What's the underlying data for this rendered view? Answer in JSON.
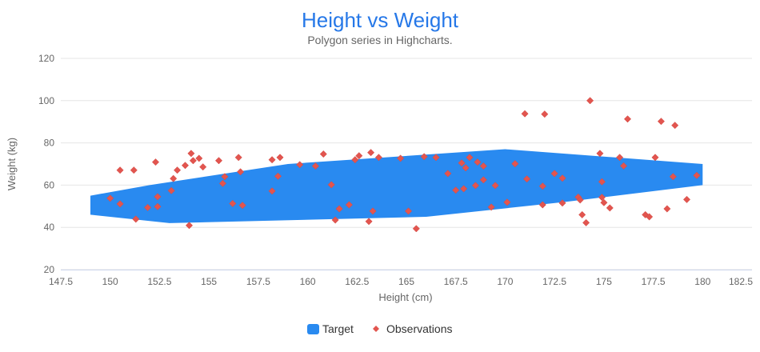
{
  "title": {
    "text": "Height vs Weight",
    "color": "#2678e8"
  },
  "subtitle": {
    "text": "Polygon series in Highcharts.",
    "color": "#666666"
  },
  "x_axis": {
    "title": "Height (cm)",
    "min": 147.5,
    "max": 182.5,
    "tick_interval": 2.5
  },
  "y_axis": {
    "title": "Weight (kg)",
    "min": 20,
    "max": 120,
    "tick_interval": 20
  },
  "legend": {
    "position": "bottom-center",
    "items": [
      {
        "label": "Target",
        "marker": "square",
        "color": "#298af0"
      },
      {
        "label": "Observations",
        "marker": "diamond",
        "color": "#e2554f"
      }
    ]
  },
  "chart_data": {
    "type": "scatter",
    "title": "Height vs Weight",
    "subtitle": "Polygon series in Highcharts.",
    "xlabel": "Height (cm)",
    "ylabel": "Weight (kg)",
    "xlim": [
      147.5,
      182.5
    ],
    "ylim": [
      20,
      120
    ],
    "x_ticks": [
      147.5,
      150,
      152.5,
      155,
      157.5,
      160,
      162.5,
      165,
      167.5,
      170,
      172.5,
      175,
      177.5,
      180,
      182.5
    ],
    "y_ticks": [
      20,
      40,
      60,
      80,
      100,
      120
    ],
    "grid": "horizontal-only",
    "legend_position": "bottom-center",
    "series": [
      {
        "name": "Target",
        "type": "polygon",
        "color": "#298af0",
        "points": [
          [
            153,
            42
          ],
          [
            149,
            46
          ],
          [
            149,
            55
          ],
          [
            152,
            60
          ],
          [
            159,
            70
          ],
          [
            170,
            77
          ],
          [
            180,
            70
          ],
          [
            180,
            60
          ],
          [
            173,
            52
          ],
          [
            166,
            45
          ]
        ]
      },
      {
        "name": "Observations",
        "type": "scatter",
        "marker": "diamond",
        "color": "#e2554f",
        "points": [
          [
            150.0,
            53.8
          ],
          [
            150.5,
            51.1
          ],
          [
            150.5,
            67.1
          ],
          [
            151.2,
            67.1
          ],
          [
            151.3,
            43.9
          ],
          [
            151.9,
            49.4
          ],
          [
            152.3,
            70.9
          ],
          [
            152.4,
            49.8
          ],
          [
            152.4,
            54.5
          ],
          [
            153.1,
            57.4
          ],
          [
            153.2,
            63.1
          ],
          [
            153.4,
            67.1
          ],
          [
            153.8,
            69.3
          ],
          [
            154.0,
            40.9
          ],
          [
            154.1,
            75.0
          ],
          [
            154.2,
            71.6
          ],
          [
            154.5,
            72.7
          ],
          [
            154.7,
            68.6
          ],
          [
            155.5,
            71.6
          ],
          [
            155.7,
            60.8
          ],
          [
            155.8,
            64.0
          ],
          [
            156.2,
            51.3
          ],
          [
            156.5,
            73.1
          ],
          [
            156.6,
            66.3
          ],
          [
            156.7,
            50.4
          ],
          [
            158.2,
            72.0
          ],
          [
            158.2,
            57.2
          ],
          [
            158.5,
            64.2
          ],
          [
            158.6,
            73.1
          ],
          [
            159.6,
            69.7
          ],
          [
            160.4,
            69.0
          ],
          [
            160.8,
            74.7
          ],
          [
            161.2,
            60.2
          ],
          [
            161.4,
            43.5
          ],
          [
            161.6,
            48.8
          ],
          [
            162.1,
            50.7
          ],
          [
            162.4,
            72.0
          ],
          [
            162.6,
            73.9
          ],
          [
            163.1,
            42.8
          ],
          [
            163.2,
            75.4
          ],
          [
            163.3,
            47.7
          ],
          [
            163.6,
            73.1
          ],
          [
            164.7,
            72.7
          ],
          [
            165.1,
            47.7
          ],
          [
            165.5,
            39.4
          ],
          [
            165.9,
            73.5
          ],
          [
            166.5,
            73.1
          ],
          [
            167.1,
            65.5
          ],
          [
            167.5,
            57.6
          ],
          [
            167.8,
            70.5
          ],
          [
            167.9,
            58.3
          ],
          [
            168.0,
            68.2
          ],
          [
            168.2,
            73.1
          ],
          [
            168.5,
            59.8
          ],
          [
            168.6,
            70.9
          ],
          [
            168.9,
            69.0
          ],
          [
            168.9,
            62.5
          ],
          [
            169.3,
            49.6
          ],
          [
            169.5,
            59.8
          ],
          [
            170.1,
            51.9
          ],
          [
            170.5,
            70.1
          ],
          [
            171.0,
            93.8
          ],
          [
            171.1,
            62.9
          ],
          [
            171.9,
            59.5
          ],
          [
            171.9,
            50.7
          ],
          [
            172.0,
            93.6
          ],
          [
            172.5,
            65.5
          ],
          [
            172.9,
            63.3
          ],
          [
            172.9,
            51.5
          ],
          [
            173.7,
            54.3
          ],
          [
            173.8,
            53.0
          ],
          [
            173.9,
            46.0
          ],
          [
            174.1,
            42.2
          ],
          [
            174.3,
            100.0
          ],
          [
            174.8,
            75.0
          ],
          [
            174.9,
            61.6
          ],
          [
            174.9,
            54.2
          ],
          [
            175.0,
            51.7
          ],
          [
            175.3,
            49.2
          ],
          [
            175.8,
            73.1
          ],
          [
            176.0,
            69.1
          ],
          [
            176.2,
            91.3
          ],
          [
            177.1,
            46.0
          ],
          [
            177.3,
            45.0
          ],
          [
            177.6,
            73.1
          ],
          [
            177.9,
            90.2
          ],
          [
            178.2,
            48.8
          ],
          [
            178.5,
            64.0
          ],
          [
            178.6,
            88.3
          ],
          [
            179.2,
            53.2
          ],
          [
            179.7,
            64.6
          ]
        ]
      }
    ]
  }
}
